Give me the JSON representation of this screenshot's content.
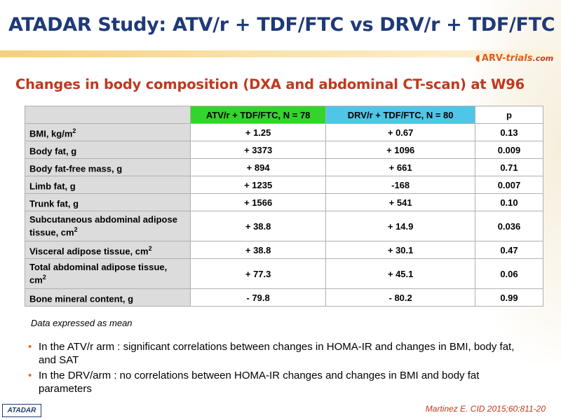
{
  "title": "ATADAR Study: ATV/r + TDF/FTC vs DRV/r + TDF/FTC",
  "logo": {
    "brand": "ARV",
    "dash": "-",
    "trials": "trials",
    "domain": ".com"
  },
  "subtitle": "Changes in body composition (DXA and abdominal CT-scan) at W96",
  "table": {
    "headers": [
      "",
      "ATV/r + TDF/FTC, N = 78",
      "DRV/r + TDF/FTC, N = 80",
      "p"
    ],
    "rows": [
      {
        "label": "BMI, kg/m",
        "sup": "2",
        "atv": "+ 1.25",
        "drv": "+ 0.67",
        "p": "0.13"
      },
      {
        "label": "Body fat, g",
        "sup": "",
        "atv": "+ 3373",
        "drv": "+ 1096",
        "p": "0.009"
      },
      {
        "label": "Body fat-free mass, g",
        "sup": "",
        "atv": "+ 894",
        "drv": "+ 661",
        "p": "0.71"
      },
      {
        "label": "Limb fat, g",
        "sup": "",
        "atv": "+ 1235",
        "drv": "-168",
        "p": "0.007"
      },
      {
        "label": "Trunk fat, g",
        "sup": "",
        "atv": "+ 1566",
        "drv": "+ 541",
        "p": "0.10"
      },
      {
        "label": "Subcutaneous abdominal adipose tissue, cm",
        "sup": "2",
        "atv": "+ 38.8",
        "drv": "+ 14.9",
        "p": "0.036"
      },
      {
        "label": "Visceral adipose tissue, cm",
        "sup": "2",
        "atv": "+ 38.8",
        "drv": "+ 30.1",
        "p": "0.47"
      },
      {
        "label": "Total abdominal adipose tissue, cm",
        "sup": "2",
        "atv": "+ 77.3",
        "drv": "+ 45.1",
        "p": "0.06"
      },
      {
        "label": "Bone mineral content, g",
        "sup": "",
        "atv": "- 79.8",
        "drv": "- 80.2",
        "p": "0.99"
      }
    ]
  },
  "note": "Data expressed as mean",
  "bullets": [
    "In the ATV/r  arm : significant correlations between changes in HOMA-IR  and changes in BMI, body fat, and SAT",
    "In the DRV/arm  : no correlations between HOMA-IR  changes and changes in BMI and body fat parameters"
  ],
  "footer_badge": "ATADAR",
  "citation": "Martinez E. CID 2015;60:811-20",
  "colors": {
    "title": "#1f3a78",
    "subtitle": "#c0391d",
    "atv_header": "#33d42b",
    "drv_header": "#4fc5e8",
    "row_label_bg": "#dcdcdc",
    "bullet": "#e07020"
  }
}
